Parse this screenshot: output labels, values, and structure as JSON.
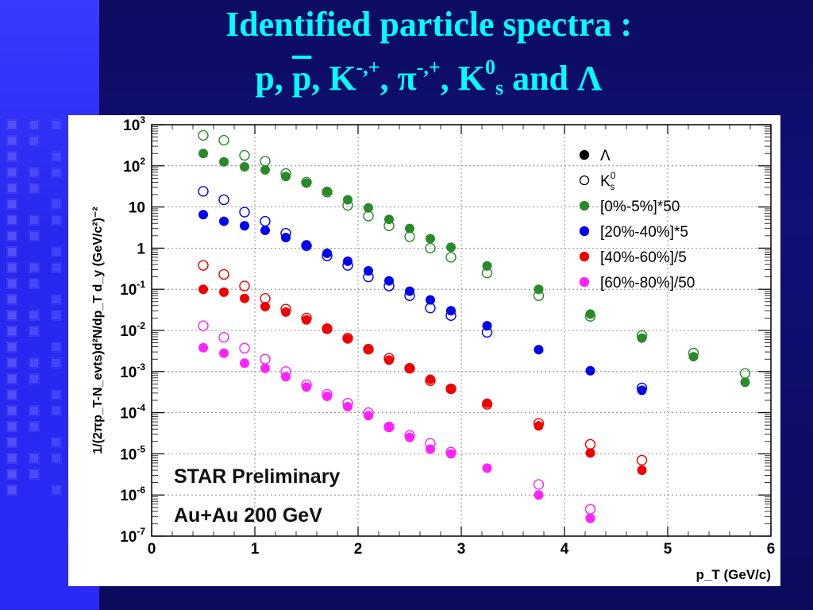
{
  "slide": {
    "title_line1": "Identified particle spectra :",
    "title_line2_parts": {
      "p": "p,",
      "pbar": "p",
      "comma1": ",",
      "K": "K",
      "K_charge": "-,+",
      "comma2": ",",
      "pi": "π",
      "pi_charge": "-,+",
      "comma3": ",",
      "K0": "K",
      "K0_sup": "0",
      "K0_sub": "s",
      "and": "and",
      "Lambda": "Λ"
    },
    "colors": {
      "title": "#00ffff",
      "background_left": "#2727ee",
      "background_right": "#0c0c62"
    }
  },
  "chart_data": {
    "type": "scatter",
    "xlabel": "p_T (GeV/c)",
    "ylabel": "1/(2πp_T-N_evts)d²N/dp_T d_y (GeV/c²)⁻²",
    "xlim": [
      0,
      6
    ],
    "ylim": [
      1e-07,
      1000
    ],
    "yscale": "log",
    "grid": true,
    "legend_position": "top-right",
    "x_ticks": [
      "0",
      "1",
      "2",
      "3",
      "4",
      "5",
      "6"
    ],
    "y_ticks": [
      {
        "base": "10",
        "exp": "3"
      },
      {
        "base": "10",
        "exp": "2"
      },
      {
        "base": "10",
        "exp": ""
      },
      {
        "base": "1",
        "exp": ""
      },
      {
        "base": "10",
        "exp": "-1"
      },
      {
        "base": "10",
        "exp": "-2"
      },
      {
        "base": "10",
        "exp": "-3"
      },
      {
        "base": "10",
        "exp": "-4"
      },
      {
        "base": "10",
        "exp": "-5"
      },
      {
        "base": "10",
        "exp": "-6"
      },
      {
        "base": "10",
        "exp": "-7"
      }
    ],
    "legend": [
      {
        "label": "Λ",
        "marker": "filled",
        "color": "#000000"
      },
      {
        "label": "K",
        "label_sup": "0",
        "label_sub": "s",
        "marker": "open",
        "color": "#000000"
      },
      {
        "label": "[0%-5%]*50",
        "marker": "filled",
        "color": "#2a8a2a"
      },
      {
        "label": "[20%-40%]*5",
        "marker": "filled",
        "color": "#0000ee"
      },
      {
        "label": "[40%-60%]/5",
        "marker": "filled",
        "color": "#ee0000"
      },
      {
        "label": "[60%-80%]/50",
        "marker": "filled",
        "color": "#ff22ff"
      }
    ],
    "annotations": [
      "STAR Preliminary",
      "Au+Au 200 GeV"
    ],
    "series": [
      {
        "group": "[0%-5%]*50",
        "particle": "Λ",
        "marker": "filled",
        "color": "#2a8a2a",
        "x": [
          0.5,
          0.7,
          0.9,
          1.1,
          1.3,
          1.5,
          1.7,
          1.9,
          2.1,
          2.3,
          2.5,
          2.7,
          2.9,
          3.25,
          3.75,
          4.25,
          4.75,
          5.25,
          5.75
        ],
        "y": [
          200,
          125,
          95,
          80,
          55,
          38,
          24,
          15,
          9.5,
          5,
          3,
          1.7,
          1.05,
          0.37,
          0.1,
          0.025,
          0.0065,
          0.0023,
          0.00055
        ]
      },
      {
        "group": "[0%-5%]*50",
        "particle": "K0s",
        "marker": "open",
        "color": "#2a8a2a",
        "x": [
          0.5,
          0.7,
          0.9,
          1.1,
          1.3,
          1.5,
          1.7,
          1.9,
          2.1,
          2.3,
          2.5,
          2.7,
          2.9,
          3.25,
          3.75,
          4.25,
          4.75,
          5.25,
          5.75
        ],
        "y": [
          550,
          420,
          180,
          130,
          65,
          40,
          23,
          11,
          6,
          3.5,
          1.9,
          1.0,
          0.6,
          0.25,
          0.07,
          0.022,
          0.0075,
          0.0028,
          0.0009
        ]
      },
      {
        "group": "[20%-40%]*5",
        "particle": "Λ",
        "marker": "filled",
        "color": "#0000ee",
        "x": [
          0.5,
          0.7,
          0.9,
          1.1,
          1.3,
          1.5,
          1.7,
          1.9,
          2.1,
          2.3,
          2.5,
          2.7,
          2.9,
          3.25,
          3.75,
          4.25,
          4.75
        ],
        "y": [
          6.5,
          4.5,
          3.5,
          2.7,
          1.8,
          1.2,
          0.75,
          0.48,
          0.28,
          0.16,
          0.09,
          0.055,
          0.03,
          0.013,
          0.0034,
          0.00105,
          0.00035
        ]
      },
      {
        "group": "[20%-40%]*5",
        "particle": "K0s",
        "marker": "open",
        "color": "#0000ee",
        "x": [
          0.5,
          0.7,
          0.9,
          1.1,
          1.3,
          1.5,
          1.7,
          1.9,
          2.1,
          2.3,
          2.5,
          2.7,
          2.9,
          3.25,
          4.75
        ],
        "y": [
          24,
          15,
          7.5,
          4.5,
          2.3,
          1.15,
          0.65,
          0.38,
          0.2,
          0.12,
          0.07,
          0.035,
          0.023,
          0.009,
          0.0004
        ]
      },
      {
        "group": "[40%-60%]/5",
        "particle": "Λ",
        "marker": "filled",
        "color": "#ee0000",
        "x": [
          0.5,
          0.7,
          0.9,
          1.1,
          1.3,
          1.5,
          1.7,
          1.9,
          2.1,
          2.3,
          2.5,
          2.7,
          2.9,
          3.25,
          3.75,
          4.25,
          4.75
        ],
        "y": [
          0.1,
          0.085,
          0.06,
          0.038,
          0.028,
          0.018,
          0.011,
          0.0062,
          0.0036,
          0.0019,
          0.0012,
          0.00065,
          0.00037,
          0.00017,
          4.8e-05,
          1.05e-05,
          4e-06
        ]
      },
      {
        "group": "[40%-60%]/5",
        "particle": "K0s",
        "marker": "open",
        "color": "#ee0000",
        "x": [
          0.5,
          0.7,
          0.9,
          1.1,
          1.3,
          1.5,
          1.7,
          1.9,
          2.1,
          2.3,
          2.5,
          2.7,
          2.9,
          3.25,
          3.75,
          4.25,
          4.75
        ],
        "y": [
          0.38,
          0.23,
          0.12,
          0.06,
          0.033,
          0.02,
          0.011,
          0.0065,
          0.0035,
          0.0021,
          0.0012,
          0.0006,
          0.00038,
          0.00016,
          5.5e-05,
          1.7e-05,
          7e-06
        ]
      },
      {
        "group": "[60%-80%]/50",
        "particle": "Λ",
        "marker": "filled",
        "color": "#ff22ff",
        "x": [
          0.5,
          0.7,
          0.9,
          1.1,
          1.3,
          1.5,
          1.7,
          1.9,
          2.1,
          2.3,
          2.5,
          2.7,
          2.9,
          3.25,
          3.75,
          4.25
        ],
        "y": [
          0.0038,
          0.0028,
          0.0016,
          0.0012,
          0.00075,
          0.00042,
          0.00025,
          0.00014,
          8.5e-05,
          4.5e-05,
          2.5e-05,
          1.3e-05,
          1e-05,
          4.5e-06,
          1e-06,
          2.7e-07
        ]
      },
      {
        "group": "[60%-80%]/50",
        "particle": "K0s",
        "marker": "open",
        "color": "#ff22ff",
        "x": [
          0.5,
          0.7,
          0.9,
          1.1,
          1.3,
          1.5,
          1.7,
          1.9,
          2.1,
          2.3,
          2.5,
          2.7,
          2.9,
          3.75,
          4.25
        ],
        "y": [
          0.013,
          0.0068,
          0.0037,
          0.002,
          0.001,
          0.00048,
          0.00028,
          0.00017,
          0.0001,
          4.5e-05,
          2.8e-05,
          1.8e-05,
          1.1e-05,
          1.8e-06,
          4.5e-07
        ]
      }
    ]
  }
}
